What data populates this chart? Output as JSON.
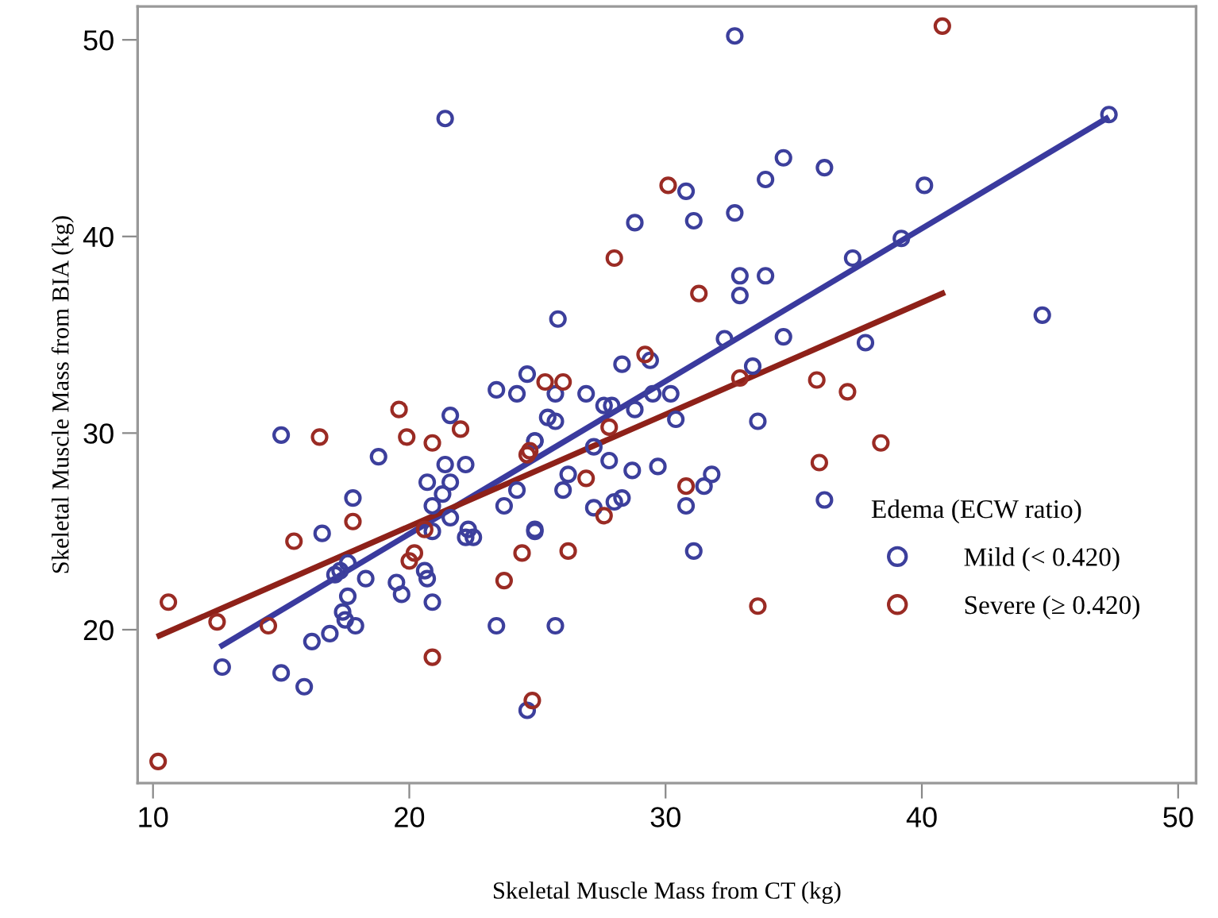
{
  "chart_data": {
    "type": "scatter",
    "xlabel": "Skeletal Muscle Mass from CT (kg)",
    "ylabel": "Skeletal Muscle Mass from BIA (kg)",
    "legend_title": "Edema (ECW ratio)",
    "legend": "bottom right",
    "marker": "circle",
    "grid": false,
    "xlim": [
      9.4,
      50.7
    ],
    "ylim": [
      12.2,
      51.7
    ],
    "xticks": [
      10,
      20,
      30,
      40,
      50
    ],
    "yticks": [
      20,
      30,
      40,
      50
    ],
    "series": [
      {
        "name": "Mild (< 0.420)",
        "color": "#3c3f9c",
        "x": [
          32.7,
          21.4,
          47.3,
          30.8,
          28.8,
          31.1,
          32.7,
          33.9,
          34.6,
          36.2,
          40.1,
          32.9,
          32.9,
          33.9,
          37.3,
          39.2,
          44.7,
          25.8,
          32.3,
          34.6,
          37.8,
          28.3,
          29.4,
          33.4,
          24.6,
          25.7,
          26.9,
          27.6,
          27.9,
          29.5,
          30.2,
          33.6,
          36.2,
          25.7,
          24.6,
          31.1,
          24.9,
          30.8,
          31.5,
          31.8,
          30.4,
          29.7,
          28.7,
          28.3,
          28.0,
          27.2,
          27.8,
          26.0,
          26.2,
          27.2,
          24.9,
          25.4,
          25.7,
          28.8,
          15.0,
          21.6,
          18.8,
          21.4,
          22.2,
          21.6,
          20.7,
          21.3,
          20.9,
          21.6,
          17.8,
          16.6,
          20.9,
          22.3,
          22.2,
          22.5,
          20.6,
          20.7,
          19.5,
          19.7,
          20.9,
          18.3,
          17.1,
          17.3,
          17.6,
          17.6,
          17.4,
          17.9,
          17.5,
          16.9,
          16.2,
          15.0,
          15.9,
          12.7,
          23.4,
          24.2,
          23.7,
          24.9,
          24.9,
          23.4,
          24.2
        ],
        "values": [
          50.2,
          46.0,
          46.2,
          42.3,
          40.7,
          40.8,
          41.2,
          42.9,
          44.0,
          43.5,
          42.6,
          38.0,
          37.0,
          38.0,
          38.9,
          39.9,
          36.0,
          35.8,
          34.8,
          34.9,
          34.6,
          33.5,
          33.7,
          33.4,
          33.0,
          32.0,
          32.0,
          31.4,
          31.4,
          32.0,
          32.0,
          30.6,
          26.6,
          20.2,
          15.9,
          24.0,
          25.1,
          26.3,
          27.3,
          27.9,
          30.7,
          28.3,
          28.1,
          26.7,
          26.5,
          26.2,
          28.6,
          27.1,
          27.9,
          29.3,
          29.6,
          30.8,
          30.6,
          31.2,
          29.9,
          30.9,
          28.8,
          28.4,
          28.4,
          27.5,
          27.5,
          26.9,
          26.3,
          25.7,
          26.7,
          24.9,
          25.0,
          25.1,
          24.7,
          24.7,
          23.0,
          22.6,
          22.4,
          21.8,
          21.4,
          22.6,
          22.8,
          23.0,
          23.4,
          21.7,
          20.9,
          20.2,
          20.5,
          19.8,
          19.4,
          17.8,
          17.1,
          18.1,
          20.2,
          27.1,
          26.3,
          25.0,
          29.6,
          32.2,
          32.0
        ]
      },
      {
        "name": "Severe (≥ 0.420)",
        "color": "#9a2b24",
        "x": [
          40.8,
          30.1,
          28.0,
          31.3,
          29.2,
          32.9,
          35.9,
          37.1,
          25.3,
          26.0,
          38.4,
          36.0,
          33.6,
          24.8,
          26.2,
          30.8,
          27.6,
          26.9,
          27.8,
          24.7,
          16.5,
          19.6,
          19.9,
          20.9,
          22.0,
          17.8,
          15.5,
          20.6,
          20.2,
          20.0,
          10.6,
          12.5,
          14.5,
          10.2,
          20.9,
          23.7,
          24.4,
          24.6
        ],
        "values": [
          50.7,
          42.6,
          38.9,
          37.1,
          34.0,
          32.8,
          32.7,
          32.1,
          32.6,
          32.6,
          29.5,
          28.5,
          21.2,
          16.4,
          24.0,
          27.3,
          25.8,
          27.7,
          30.3,
          29.1,
          29.8,
          31.2,
          29.8,
          29.5,
          30.2,
          25.5,
          24.5,
          25.1,
          23.9,
          23.5,
          21.4,
          20.4,
          20.2,
          13.3,
          18.6,
          22.5,
          23.9,
          28.9
        ]
      },
      {
        "color": "#3a3a9e",
        "type": "line",
        "marker": "none",
        "x": [
          12.7,
          47.2
        ],
        "values": [
          19.2,
          46.0
        ]
      },
      {
        "color": "#8e2119",
        "type": "line",
        "marker": "none",
        "x": [
          10.25,
          40.8
        ],
        "values": [
          19.7,
          37.1
        ]
      }
    ]
  }
}
